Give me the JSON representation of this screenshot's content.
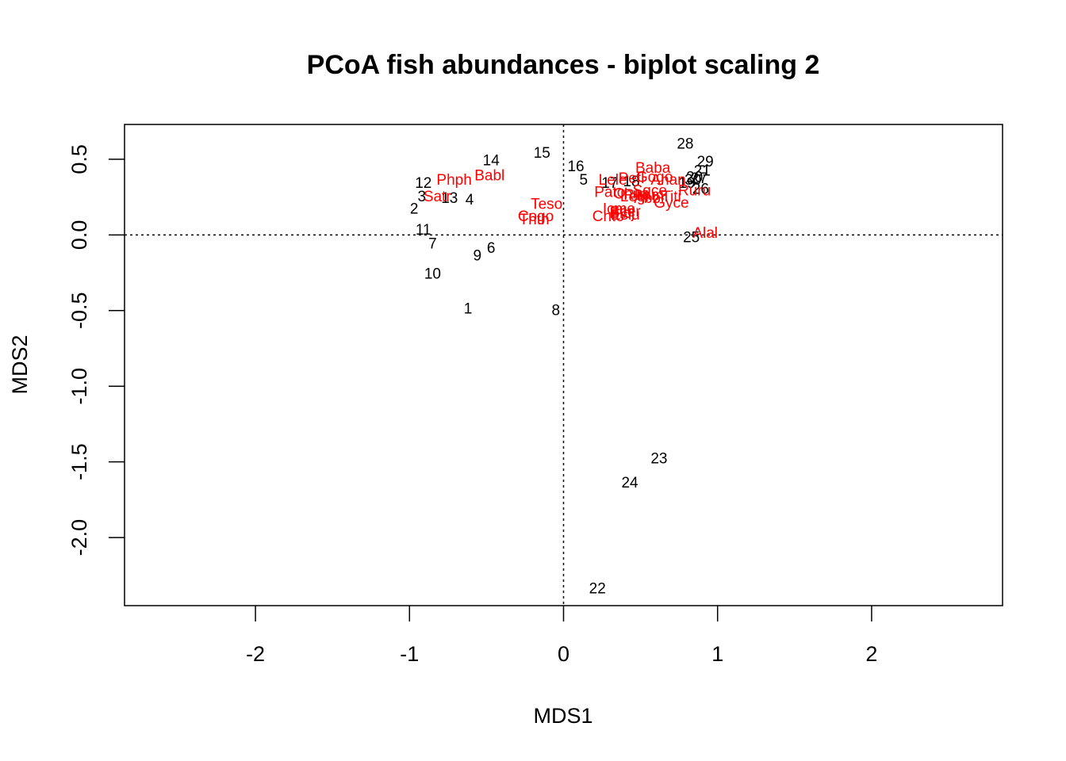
{
  "chart_data": {
    "type": "scatter",
    "title": "PCoA fish abundances - biplot scaling 2",
    "xlabel": "MDS1",
    "ylabel": "MDS2",
    "xlim": [
      -2.85,
      2.85
    ],
    "ylim": [
      -2.45,
      0.73
    ],
    "x_ticks": [
      -2,
      -1,
      0,
      1,
      2
    ],
    "y_ticks": [
      -2.0,
      -1.5,
      -1.0,
      -0.5,
      0.0,
      0.5
    ],
    "x_tick_labels": [
      "-2",
      "-1",
      "0",
      "1",
      "2"
    ],
    "y_tick_labels": [
      "-2.0",
      "-1.5",
      "-1.0",
      "-0.5",
      "0.0",
      "0.5"
    ],
    "reference_lines": {
      "x": 0,
      "y": 0,
      "style": "dotted"
    },
    "colors": {
      "sites": "#000000",
      "species": "#ff0000"
    },
    "series": [
      {
        "points": [
          {
            "label": "1",
            "x": -0.62,
            "y": -0.49
          },
          {
            "label": "2",
            "x": -0.97,
            "y": 0.17
          },
          {
            "label": "3",
            "x": -0.92,
            "y": 0.25
          },
          {
            "label": "4",
            "x": -0.61,
            "y": 0.23
          },
          {
            "label": "5",
            "x": 0.13,
            "y": 0.36
          },
          {
            "label": "6",
            "x": -0.47,
            "y": -0.09
          },
          {
            "label": "7",
            "x": -0.85,
            "y": -0.06
          },
          {
            "label": "8",
            "x": -0.05,
            "y": -0.5
          },
          {
            "label": "9",
            "x": -0.56,
            "y": -0.14
          },
          {
            "label": "10",
            "x": -0.85,
            "y": -0.26
          },
          {
            "label": "11",
            "x": -0.91,
            "y": 0.03
          },
          {
            "label": "12",
            "x": -0.91,
            "y": 0.34
          },
          {
            "label": "13",
            "x": -0.74,
            "y": 0.24
          },
          {
            "label": "14",
            "x": -0.47,
            "y": 0.49
          },
          {
            "label": "15",
            "x": -0.14,
            "y": 0.54
          },
          {
            "label": "16",
            "x": 0.08,
            "y": 0.45
          },
          {
            "label": "17",
            "x": 0.3,
            "y": 0.34
          },
          {
            "label": "18",
            "x": 0.44,
            "y": 0.35
          },
          {
            "label": "19",
            "x": 0.8,
            "y": 0.34
          },
          {
            "label": "20",
            "x": 0.85,
            "y": 0.38
          },
          {
            "label": "21",
            "x": 0.9,
            "y": 0.42
          },
          {
            "label": "22",
            "x": 0.22,
            "y": -2.34
          },
          {
            "label": "23",
            "x": 0.62,
            "y": -1.48
          },
          {
            "label": "24",
            "x": 0.43,
            "y": -1.64
          },
          {
            "label": "25",
            "x": 0.83,
            "y": -0.02
          },
          {
            "label": "26",
            "x": 0.89,
            "y": 0.3
          },
          {
            "label": "27",
            "x": 0.88,
            "y": 0.37
          },
          {
            "label": "28",
            "x": 0.79,
            "y": 0.6
          },
          {
            "label": "29",
            "x": 0.92,
            "y": 0.48
          },
          {
            "label": "30",
            "x": 0.84,
            "y": 0.36
          }
        ]
      },
      {
        "points": [
          {
            "label": "Phph",
            "x": -0.71,
            "y": 0.36
          },
          {
            "label": "Babl",
            "x": -0.48,
            "y": 0.39
          },
          {
            "label": "Satr",
            "x": -0.82,
            "y": 0.25
          },
          {
            "label": "Teso",
            "x": -0.11,
            "y": 0.2
          },
          {
            "label": "Cogo",
            "x": -0.18,
            "y": 0.12
          },
          {
            "label": "Thth",
            "x": -0.19,
            "y": 0.1
          },
          {
            "label": "Baba",
            "x": 0.58,
            "y": 0.44
          },
          {
            "label": "Lele",
            "x": 0.32,
            "y": 0.36
          },
          {
            "label": "Pefl",
            "x": 0.44,
            "y": 0.37
          },
          {
            "label": "Gogo",
            "x": 0.59,
            "y": 0.38
          },
          {
            "label": "Anan",
            "x": 0.68,
            "y": 0.36
          },
          {
            "label": "Sqce",
            "x": 0.56,
            "y": 0.29
          },
          {
            "label": "Ruru",
            "x": 0.85,
            "y": 0.29
          },
          {
            "label": "Pato",
            "x": 0.3,
            "y": 0.28
          },
          {
            "label": "Chna",
            "x": 0.44,
            "y": 0.27
          },
          {
            "label": "Rham",
            "x": 0.52,
            "y": 0.26
          },
          {
            "label": "Legi",
            "x": 0.46,
            "y": 0.25
          },
          {
            "label": "Titi",
            "x": 0.7,
            "y": 0.25
          },
          {
            "label": "Abbr",
            "x": 0.56,
            "y": 0.24
          },
          {
            "label": "Gyce",
            "x": 0.7,
            "y": 0.21
          },
          {
            "label": "Icme",
            "x": 0.36,
            "y": 0.17
          },
          {
            "label": "Scer",
            "x": 0.4,
            "y": 0.15
          },
          {
            "label": "Blbj",
            "x": 0.38,
            "y": 0.14
          },
          {
            "label": "Eslu",
            "x": 0.4,
            "y": 0.13
          },
          {
            "label": "Chto",
            "x": 0.29,
            "y": 0.12
          },
          {
            "label": "Alal",
            "x": 0.92,
            "y": 0.01
          }
        ]
      }
    ]
  }
}
